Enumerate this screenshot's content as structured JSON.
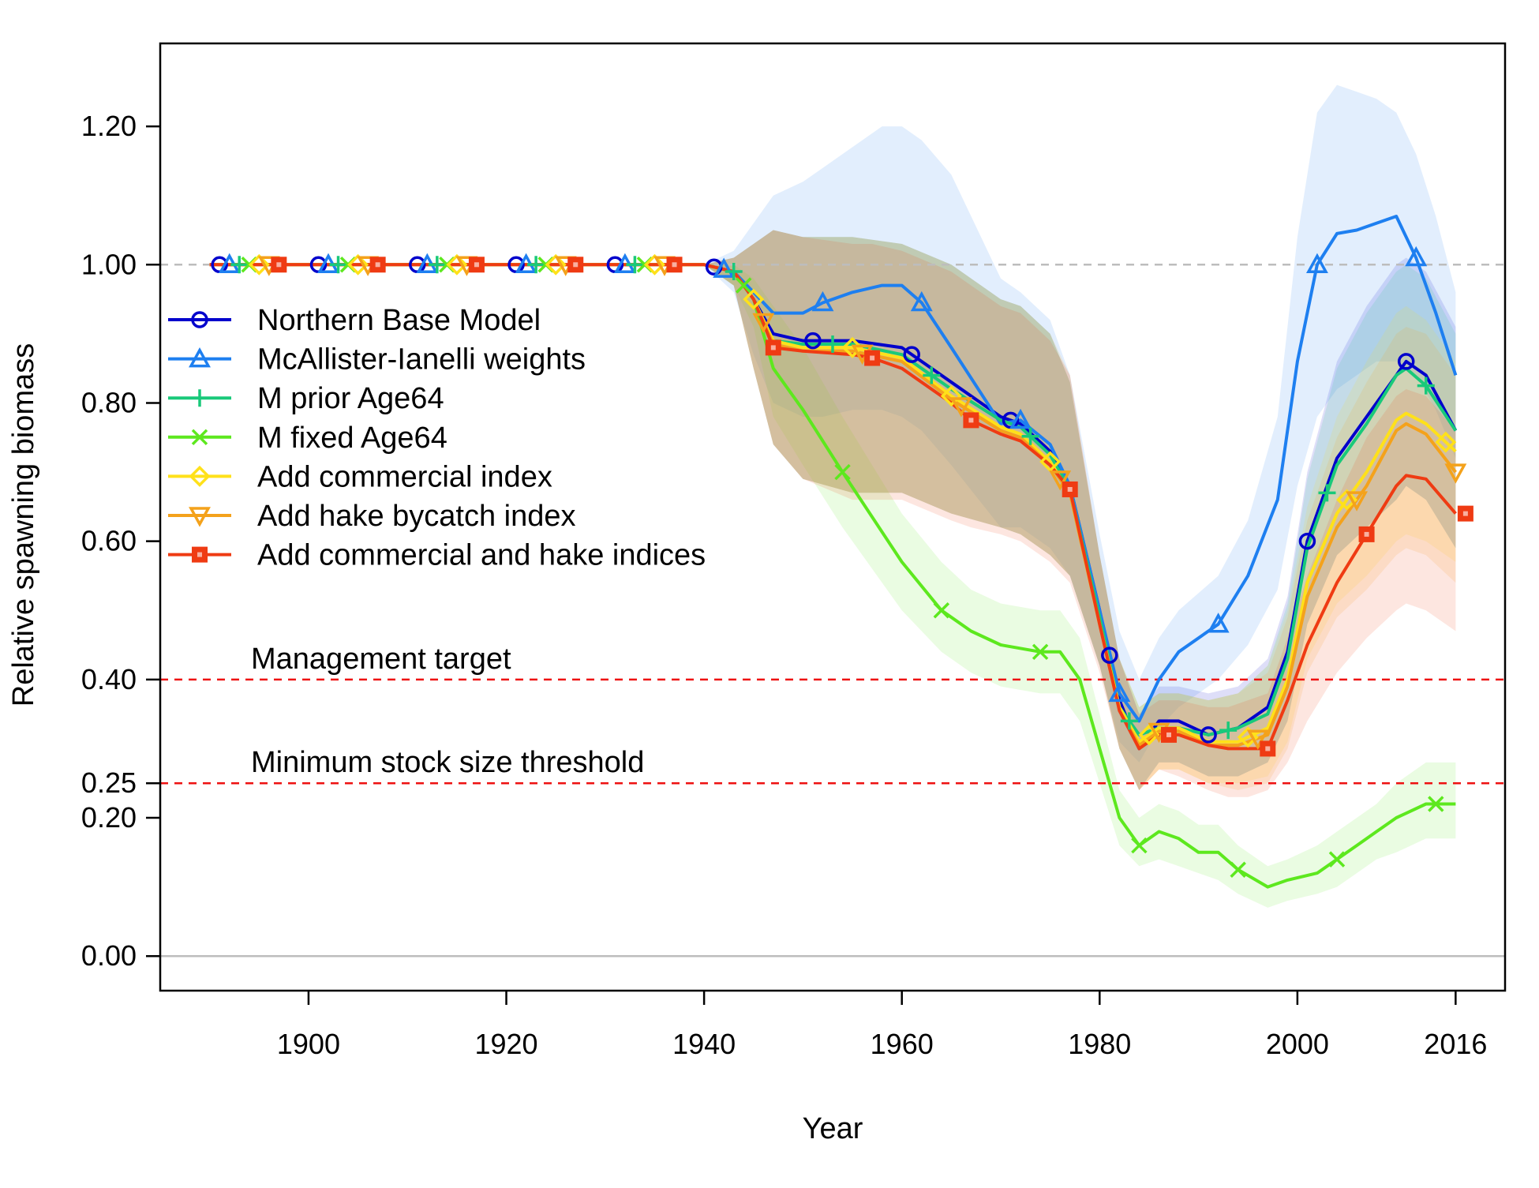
{
  "chart_data": {
    "type": "line",
    "title": "",
    "xlabel": "Year",
    "ylabel": "Relative spawning biomass",
    "xlim": [
      1885,
      2021
    ],
    "ylim": [
      -0.05,
      1.32
    ],
    "x_ticks": [
      1900,
      1920,
      1940,
      1960,
      1980,
      2000,
      2016
    ],
    "y_ticks": [
      0.0,
      0.2,
      0.25,
      0.4,
      0.6,
      0.8,
      1.0,
      1.2
    ],
    "y_tick_labels": [
      "0.00",
      "0.20",
      "0.25",
      "0.40",
      "0.60",
      "0.80",
      "1.00",
      "1.20"
    ],
    "grid": false,
    "legend_position": "left",
    "reference_lines": [
      {
        "y": 1.0,
        "color": "#bdbdbd",
        "style": "dashed",
        "label": ""
      },
      {
        "y": 0.4,
        "color": "#ee1111",
        "style": "dashed",
        "label": "Management target"
      },
      {
        "y": 0.25,
        "color": "#ee1111",
        "style": "dashed",
        "label": "Minimum stock size threshold"
      },
      {
        "y": 0.0,
        "color": "#bdbdbd",
        "style": "solid",
        "label": ""
      }
    ],
    "series": [
      {
        "name": "Northern Base Model",
        "color": "#0000cc",
        "marker": "circle",
        "marker_x": [
          1891,
          1901,
          1911,
          1921,
          1931,
          1941,
          1951,
          1961,
          1971,
          1981,
          1991,
          2001,
          2011
        ],
        "x": [
          1890,
          1940,
          1943,
          1945,
          1947,
          1950,
          1955,
          1960,
          1965,
          1970,
          1972,
          1975,
          1977,
          1980,
          1982,
          1984,
          1986,
          1988,
          1991,
          1994,
          1997,
          1999,
          2001,
          2004,
          2007,
          2010,
          2011,
          2013,
          2016
        ],
        "y": [
          1.0,
          1.0,
          0.99,
          0.95,
          0.9,
          0.89,
          0.89,
          0.88,
          0.83,
          0.78,
          0.77,
          0.73,
          0.68,
          0.5,
          0.37,
          0.3,
          0.34,
          0.34,
          0.32,
          0.33,
          0.36,
          0.44,
          0.6,
          0.72,
          0.78,
          0.84,
          0.86,
          0.84,
          0.76
        ],
        "upper": [
          1.0,
          1.0,
          1.01,
          1.03,
          1.05,
          1.04,
          1.04,
          1.03,
          1.0,
          0.95,
          0.94,
          0.9,
          0.83,
          0.58,
          0.43,
          0.35,
          0.39,
          0.39,
          0.38,
          0.39,
          0.43,
          0.52,
          0.7,
          0.86,
          0.94,
          1.0,
          1.01,
          0.99,
          0.91
        ],
        "lower": [
          1.0,
          1.0,
          0.97,
          0.85,
          0.74,
          0.69,
          0.67,
          0.67,
          0.64,
          0.62,
          0.61,
          0.58,
          0.55,
          0.42,
          0.3,
          0.24,
          0.28,
          0.28,
          0.26,
          0.26,
          0.28,
          0.34,
          0.48,
          0.58,
          0.62,
          0.66,
          0.68,
          0.66,
          0.59
        ]
      },
      {
        "name": "McAllister-Ianelli weights",
        "color": "#1e7ff0",
        "marker": "triangle",
        "marker_x": [
          1892,
          1902,
          1912,
          1922,
          1932,
          1942,
          1952,
          1962,
          1972,
          1982,
          1992,
          2002,
          2012
        ],
        "x": [
          1890,
          1940,
          1943,
          1945,
          1947,
          1950,
          1952,
          1955,
          1958,
          1960,
          1962,
          1965,
          1970,
          1972,
          1975,
          1977,
          1980,
          1982,
          1984,
          1986,
          1988,
          1992,
          1995,
          1998,
          2000,
          2002,
          2004,
          2006,
          2008,
          2010,
          2012,
          2014,
          2016
        ],
        "y": [
          1.0,
          1.0,
          0.99,
          0.96,
          0.93,
          0.93,
          0.945,
          0.96,
          0.97,
          0.97,
          0.945,
          0.88,
          0.77,
          0.775,
          0.74,
          0.68,
          0.5,
          0.38,
          0.34,
          0.4,
          0.44,
          0.48,
          0.55,
          0.66,
          0.86,
          1.0,
          1.045,
          1.05,
          1.06,
          1.07,
          1.01,
          0.93,
          0.84
        ],
        "upper": [
          1.0,
          1.0,
          1.02,
          1.06,
          1.1,
          1.12,
          1.14,
          1.17,
          1.2,
          1.2,
          1.18,
          1.13,
          0.98,
          0.96,
          0.92,
          0.84,
          0.61,
          0.47,
          0.4,
          0.46,
          0.5,
          0.55,
          0.63,
          0.78,
          1.04,
          1.22,
          1.26,
          1.25,
          1.24,
          1.22,
          1.16,
          1.07,
          0.96
        ],
        "lower": [
          1.0,
          1.0,
          0.96,
          0.87,
          0.8,
          0.78,
          0.78,
          0.79,
          0.79,
          0.78,
          0.76,
          0.71,
          0.62,
          0.62,
          0.59,
          0.55,
          0.42,
          0.31,
          0.28,
          0.33,
          0.36,
          0.4,
          0.45,
          0.53,
          0.68,
          0.78,
          0.82,
          0.84,
          0.86,
          0.86,
          0.84,
          0.79,
          0.72
        ]
      },
      {
        "name": "M prior Age64",
        "color": "#19c97a",
        "marker": "plus",
        "marker_x": [
          1893,
          1903,
          1913,
          1923,
          1933,
          1943,
          1953,
          1963,
          1973,
          1983,
          1993,
          2003,
          2013
        ],
        "x": [
          1890,
          1940,
          1943,
          1945,
          1947,
          1950,
          1955,
          1960,
          1965,
          1970,
          1972,
          1975,
          1977,
          1980,
          1982,
          1984,
          1986,
          1988,
          1991,
          1994,
          1997,
          1999,
          2001,
          2004,
          2007,
          2010,
          2011,
          2013,
          2016
        ],
        "y": [
          1.0,
          1.0,
          0.99,
          0.95,
          0.89,
          0.885,
          0.885,
          0.87,
          0.82,
          0.775,
          0.765,
          0.725,
          0.675,
          0.49,
          0.36,
          0.32,
          0.33,
          0.33,
          0.32,
          0.33,
          0.35,
          0.43,
          0.59,
          0.71,
          0.77,
          0.84,
          0.85,
          0.825,
          0.76
        ],
        "upper": [
          1.0,
          1.0,
          1.01,
          1.03,
          1.05,
          1.04,
          1.04,
          1.03,
          1.0,
          0.95,
          0.94,
          0.9,
          0.83,
          0.58,
          0.43,
          0.36,
          0.38,
          0.38,
          0.37,
          0.38,
          0.42,
          0.51,
          0.69,
          0.85,
          0.93,
          0.99,
          1.0,
          0.98,
          0.9
        ],
        "lower": [
          1.0,
          1.0,
          0.97,
          0.85,
          0.74,
          0.69,
          0.67,
          0.67,
          0.64,
          0.62,
          0.61,
          0.58,
          0.55,
          0.42,
          0.3,
          0.24,
          0.28,
          0.28,
          0.26,
          0.26,
          0.28,
          0.34,
          0.48,
          0.58,
          0.62,
          0.66,
          0.68,
          0.66,
          0.59
        ]
      },
      {
        "name": "M fixed Age64",
        "color": "#5de81e",
        "marker": "x",
        "marker_x": [
          1894,
          1904,
          1914,
          1924,
          1934,
          1944,
          1954,
          1964,
          1974,
          1984,
          1994,
          2004,
          2014
        ],
        "x": [
          1890,
          1940,
          1943,
          1945,
          1947,
          1950,
          1954,
          1960,
          1964,
          1967,
          1970,
          1974,
          1976,
          1978,
          1980,
          1982,
          1984,
          1986,
          1988,
          1990,
          1992,
          1994,
          1997,
          1999,
          2002,
          2004,
          2006,
          2008,
          2010,
          2013,
          2016
        ],
        "y": [
          1.0,
          1.0,
          0.99,
          0.95,
          0.85,
          0.79,
          0.7,
          0.57,
          0.5,
          0.47,
          0.45,
          0.44,
          0.44,
          0.4,
          0.3,
          0.2,
          0.16,
          0.18,
          0.17,
          0.15,
          0.15,
          0.125,
          0.1,
          0.11,
          0.12,
          0.14,
          0.16,
          0.18,
          0.2,
          0.22,
          0.22
        ],
        "upper": [
          1.0,
          1.0,
          1.0,
          0.98,
          0.94,
          0.88,
          0.78,
          0.64,
          0.57,
          0.53,
          0.51,
          0.5,
          0.5,
          0.46,
          0.35,
          0.24,
          0.2,
          0.22,
          0.21,
          0.19,
          0.19,
          0.16,
          0.13,
          0.14,
          0.16,
          0.18,
          0.2,
          0.22,
          0.25,
          0.28,
          0.28
        ],
        "lower": [
          1.0,
          1.0,
          0.97,
          0.91,
          0.78,
          0.71,
          0.62,
          0.5,
          0.44,
          0.41,
          0.39,
          0.38,
          0.38,
          0.34,
          0.25,
          0.16,
          0.13,
          0.14,
          0.13,
          0.12,
          0.11,
          0.09,
          0.07,
          0.08,
          0.09,
          0.1,
          0.12,
          0.14,
          0.15,
          0.17,
          0.17
        ]
      },
      {
        "name": "Add commercial index",
        "color": "#ffe11a",
        "marker": "diamond",
        "marker_x": [
          1895,
          1905,
          1915,
          1925,
          1935,
          1945,
          1955,
          1965,
          1975,
          1985,
          1995,
          2005,
          2015
        ],
        "x": [
          1890,
          1940,
          1943,
          1945,
          1947,
          1950,
          1955,
          1960,
          1965,
          1970,
          1972,
          1975,
          1977,
          1980,
          1982,
          1984,
          1986,
          1988,
          1991,
          1994,
          1997,
          1999,
          2001,
          2004,
          2007,
          2010,
          2011,
          2013,
          2016
        ],
        "y": [
          1.0,
          1.0,
          0.99,
          0.95,
          0.89,
          0.88,
          0.88,
          0.865,
          0.81,
          0.765,
          0.755,
          0.715,
          0.67,
          0.48,
          0.36,
          0.31,
          0.33,
          0.33,
          0.31,
          0.31,
          0.33,
          0.4,
          0.54,
          0.64,
          0.7,
          0.775,
          0.785,
          0.77,
          0.73
        ],
        "upper": [
          1.0,
          1.0,
          1.01,
          1.03,
          1.05,
          1.04,
          1.04,
          1.03,
          1.0,
          0.95,
          0.94,
          0.9,
          0.83,
          0.58,
          0.43,
          0.36,
          0.38,
          0.38,
          0.37,
          0.38,
          0.42,
          0.5,
          0.65,
          0.78,
          0.86,
          0.93,
          0.94,
          0.92,
          0.86
        ],
        "lower": [
          1.0,
          1.0,
          0.97,
          0.85,
          0.74,
          0.69,
          0.67,
          0.67,
          0.64,
          0.62,
          0.61,
          0.58,
          0.55,
          0.42,
          0.3,
          0.24,
          0.27,
          0.27,
          0.25,
          0.25,
          0.26,
          0.31,
          0.43,
          0.51,
          0.55,
          0.6,
          0.61,
          0.6,
          0.57
        ]
      },
      {
        "name": "Add hake bycatch index",
        "color": "#f4a21b",
        "marker": "triangle-down",
        "marker_x": [
          1896,
          1906,
          1916,
          1926,
          1936,
          1946,
          1956,
          1966,
          1976,
          1986,
          1996,
          2006,
          2016
        ],
        "x": [
          1890,
          1940,
          1943,
          1945,
          1947,
          1950,
          1955,
          1960,
          1965,
          1970,
          1972,
          1975,
          1977,
          1980,
          1982,
          1984,
          1986,
          1988,
          1991,
          1994,
          1997,
          1999,
          2001,
          2004,
          2007,
          2010,
          2011,
          2013,
          2016
        ],
        "y": [
          1.0,
          1.0,
          0.99,
          0.95,
          0.885,
          0.875,
          0.875,
          0.86,
          0.805,
          0.76,
          0.75,
          0.71,
          0.67,
          0.48,
          0.355,
          0.305,
          0.325,
          0.325,
          0.305,
          0.305,
          0.32,
          0.39,
          0.52,
          0.62,
          0.68,
          0.76,
          0.77,
          0.755,
          0.7
        ],
        "upper": [
          1.0,
          1.0,
          1.01,
          1.03,
          1.05,
          1.04,
          1.04,
          1.03,
          1.0,
          0.95,
          0.94,
          0.9,
          0.84,
          0.58,
          0.43,
          0.36,
          0.38,
          0.38,
          0.37,
          0.38,
          0.41,
          0.49,
          0.63,
          0.75,
          0.83,
          0.9,
          0.91,
          0.9,
          0.84
        ],
        "lower": [
          1.0,
          1.0,
          0.97,
          0.85,
          0.74,
          0.69,
          0.67,
          0.67,
          0.64,
          0.62,
          0.61,
          0.58,
          0.55,
          0.42,
          0.3,
          0.24,
          0.27,
          0.27,
          0.25,
          0.24,
          0.25,
          0.3,
          0.41,
          0.49,
          0.53,
          0.58,
          0.59,
          0.58,
          0.54
        ]
      },
      {
        "name": "Add commercial and hake indices",
        "color": "#ef3b13",
        "marker": "square",
        "marker_x": [
          1897,
          1907,
          1917,
          1927,
          1937,
          1947,
          1957,
          1967,
          1977,
          1987,
          1997,
          2007,
          2017
        ],
        "x": [
          1890,
          1940,
          1943,
          1945,
          1947,
          1950,
          1955,
          1957,
          1960,
          1965,
          1967,
          1970,
          1972,
          1975,
          1977,
          1980,
          1982,
          1984,
          1986,
          1988,
          1991,
          1993,
          1995,
          1997,
          1999,
          2001,
          2004,
          2007,
          2010,
          2011,
          2013,
          2016
        ],
        "y": [
          1.0,
          1.0,
          0.99,
          0.95,
          0.88,
          0.875,
          0.87,
          0.865,
          0.85,
          0.8,
          0.775,
          0.755,
          0.745,
          0.71,
          0.675,
          0.48,
          0.355,
          0.3,
          0.32,
          0.32,
          0.305,
          0.3,
          0.3,
          0.3,
          0.37,
          0.45,
          0.54,
          0.61,
          0.68,
          0.695,
          0.69,
          0.64
        ],
        "upper": [
          1.0,
          1.0,
          1.01,
          1.03,
          1.05,
          1.04,
          1.03,
          1.03,
          1.02,
          0.99,
          0.97,
          0.94,
          0.93,
          0.89,
          0.84,
          0.58,
          0.43,
          0.35,
          0.37,
          0.37,
          0.36,
          0.36,
          0.37,
          0.38,
          0.46,
          0.55,
          0.66,
          0.75,
          0.81,
          0.82,
          0.81,
          0.76
        ],
        "lower": [
          1.0,
          1.0,
          0.97,
          0.85,
          0.74,
          0.69,
          0.66,
          0.66,
          0.66,
          0.63,
          0.62,
          0.61,
          0.6,
          0.57,
          0.54,
          0.41,
          0.3,
          0.24,
          0.27,
          0.26,
          0.24,
          0.23,
          0.23,
          0.24,
          0.28,
          0.34,
          0.41,
          0.46,
          0.5,
          0.51,
          0.5,
          0.47
        ]
      }
    ]
  }
}
